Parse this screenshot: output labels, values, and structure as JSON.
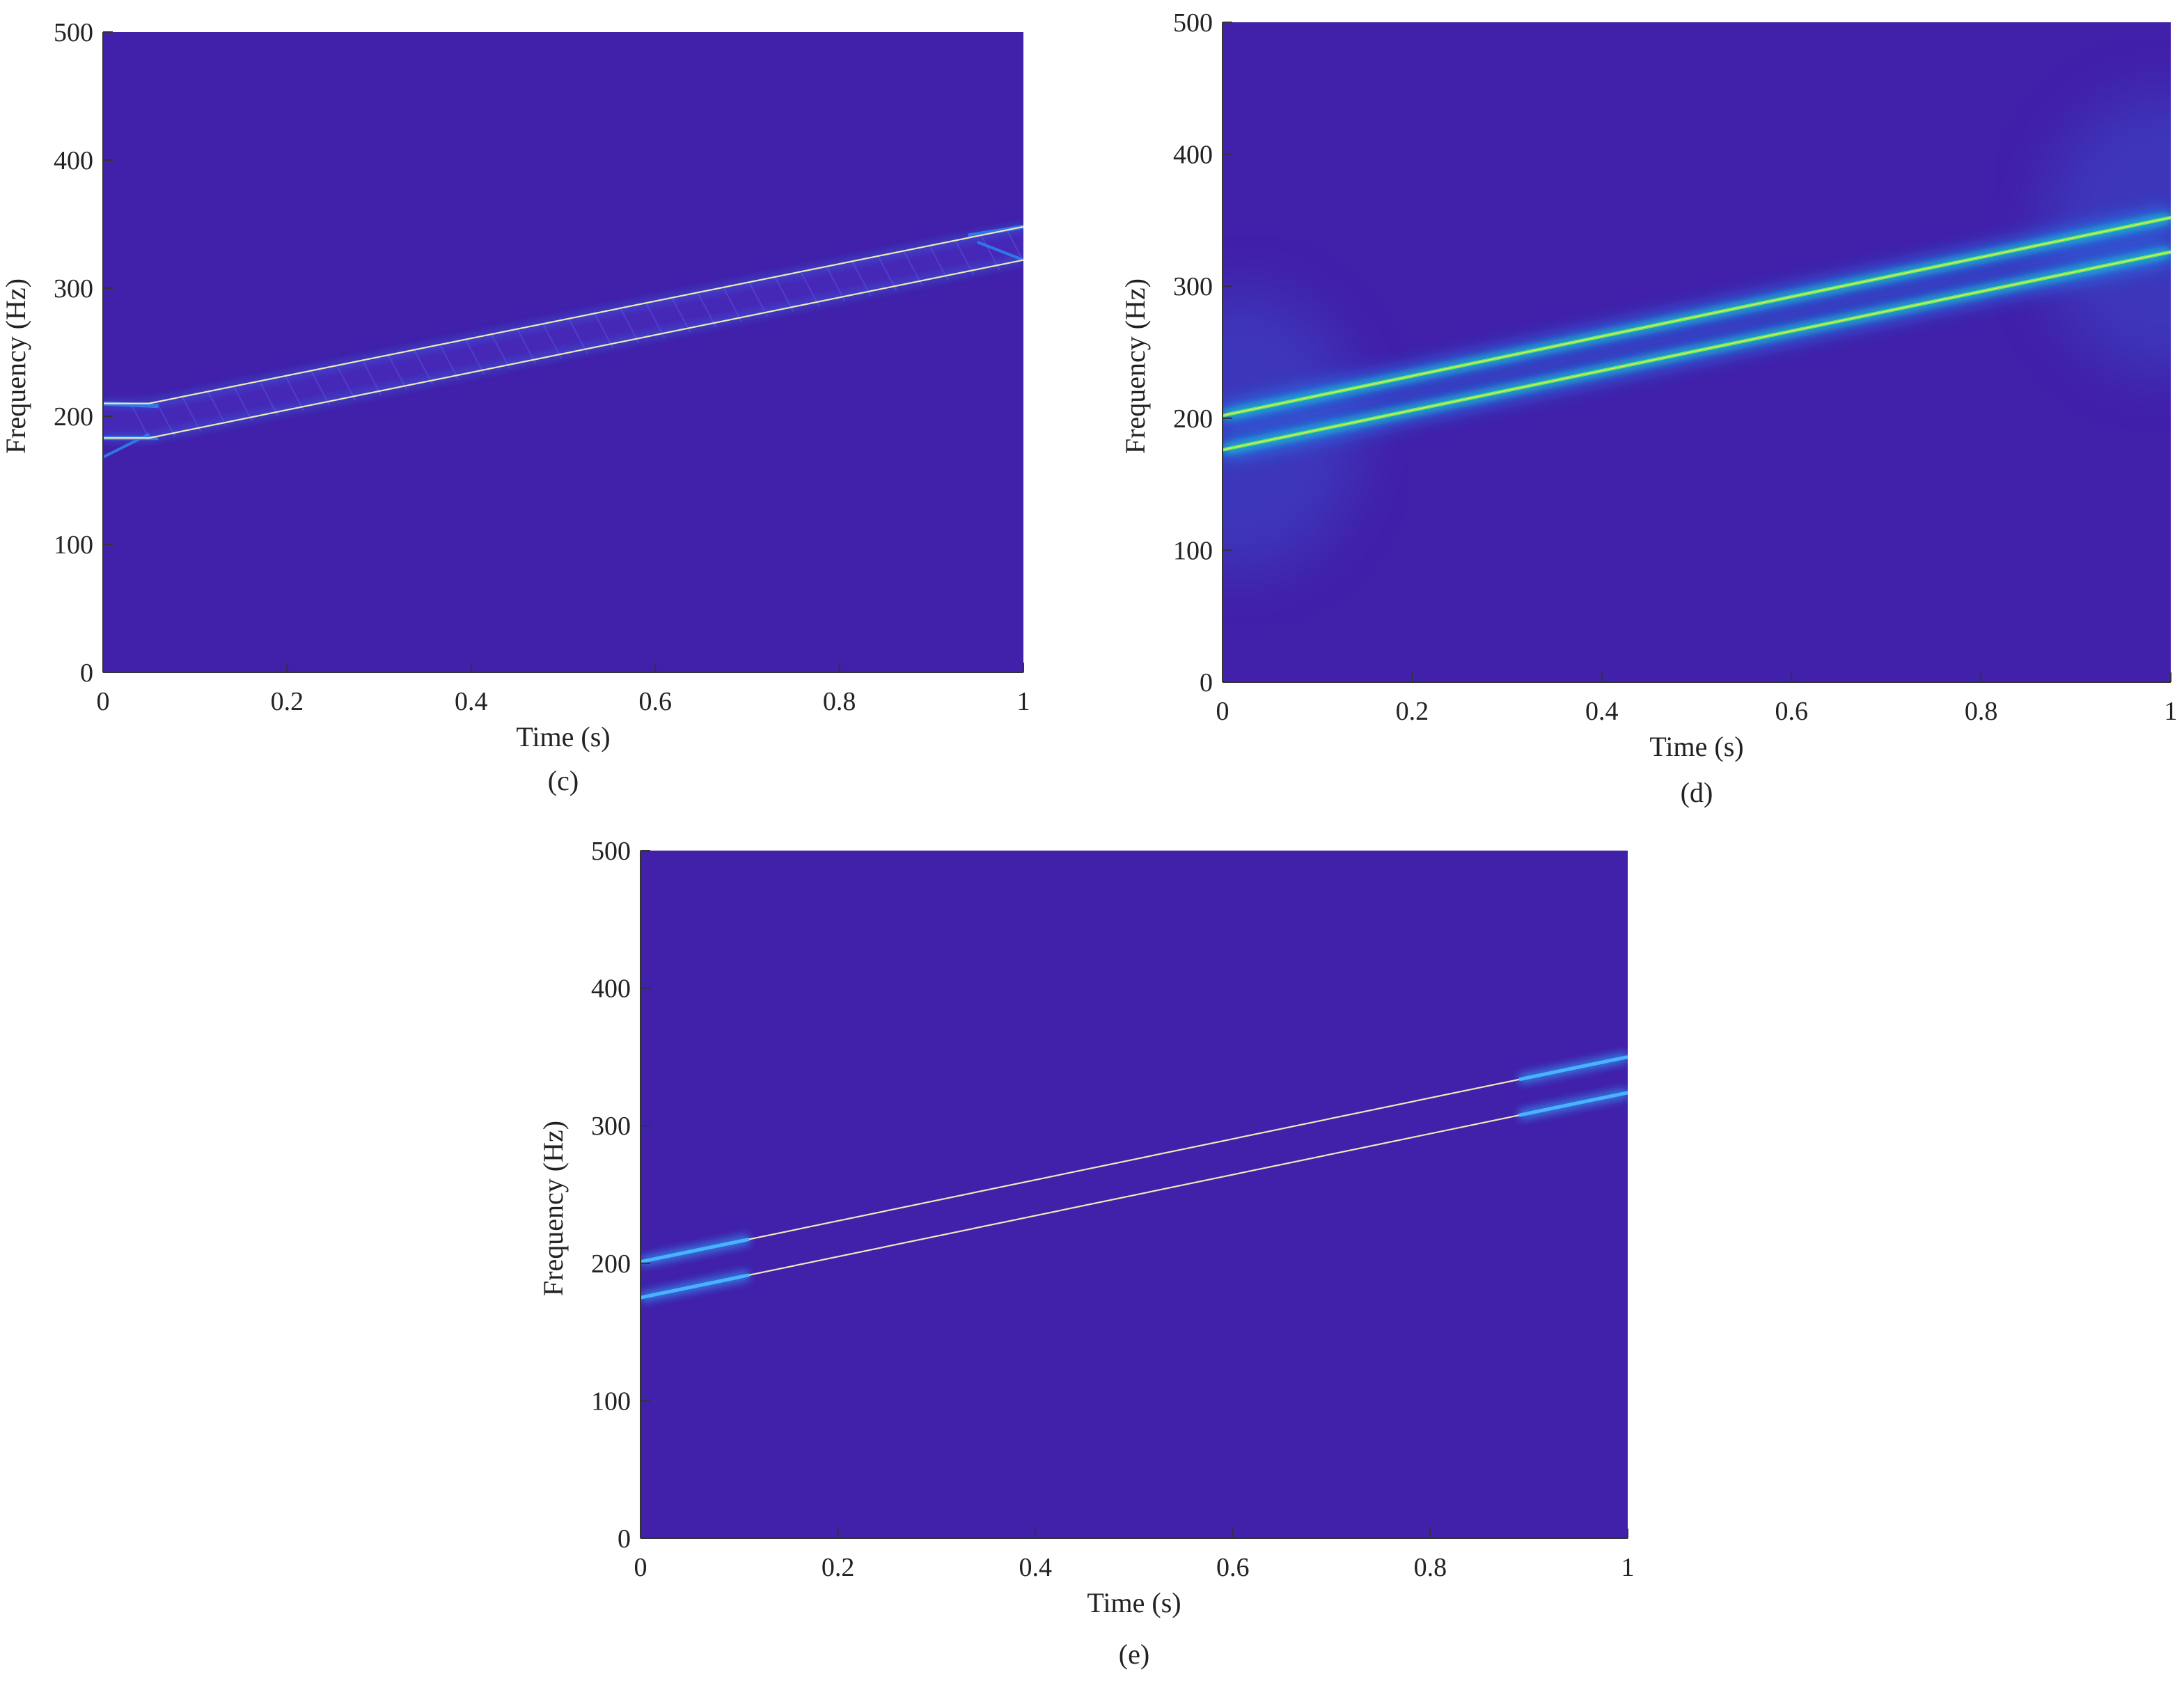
{
  "colors": {
    "background": "#4120AA",
    "glow_c": "#2E7FEE",
    "glow_d_outer": "#1E90FF",
    "glow_d_core": "#62E86A",
    "glow_e": "#2F9BF5",
    "ridge_line": "#F2E7B8",
    "axis": "#333333"
  },
  "chart_data": [
    {
      "type": "heatmap",
      "caption": "(c)",
      "xlabel": "Time (s)",
      "ylabel": "Frequency (Hz)",
      "xlim": [
        0,
        1
      ],
      "ylim": [
        0,
        500
      ],
      "xticks": [
        0,
        0.2,
        0.4,
        0.6,
        0.8,
        1
      ],
      "xtick_labels": [
        "0",
        "0.2",
        "0.4",
        "0.6",
        "0.8",
        "1"
      ],
      "yticks": [
        0,
        100,
        200,
        300,
        400,
        500
      ],
      "ytick_labels": [
        "0",
        "100",
        "200",
        "300",
        "400",
        "500"
      ],
      "grid": false,
      "ridges": [
        {
          "x": [
            0,
            0.05,
            1
          ],
          "y": [
            210,
            210,
            348
          ]
        },
        {
          "x": [
            0,
            0.05,
            1
          ],
          "y": [
            183,
            183,
            322
          ]
        }
      ],
      "artifacts": [
        {
          "x": [
            0,
            0.05
          ],
          "y": [
            168,
            186
          ]
        },
        {
          "x": [
            0.95,
            1
          ],
          "y": [
            336,
            322
          ]
        }
      ]
    },
    {
      "type": "heatmap",
      "caption": "(d)",
      "xlabel": "Time (s)",
      "ylabel": "Frequency (Hz)",
      "xlim": [
        0,
        1
      ],
      "ylim": [
        0,
        500
      ],
      "xticks": [
        0,
        0.2,
        0.4,
        0.6,
        0.8,
        1
      ],
      "xtick_labels": [
        "0",
        "0.2",
        "0.4",
        "0.6",
        "0.8",
        "1"
      ],
      "yticks": [
        0,
        100,
        200,
        300,
        400,
        500
      ],
      "ytick_labels": [
        "0",
        "100",
        "200",
        "300",
        "400",
        "500"
      ],
      "grid": false,
      "ridges": [
        {
          "x": [
            0,
            1
          ],
          "y": [
            202,
            352
          ]
        },
        {
          "x": [
            0,
            1
          ],
          "y": [
            176,
            326
          ]
        }
      ]
    },
    {
      "type": "heatmap",
      "caption": "(e)",
      "xlabel": "Time (s)",
      "ylabel": "Frequency (Hz)",
      "xlim": [
        0,
        1
      ],
      "ylim": [
        0,
        500
      ],
      "xticks": [
        0,
        0.2,
        0.4,
        0.6,
        0.8,
        1
      ],
      "xtick_labels": [
        "0",
        "0.2",
        "0.4",
        "0.6",
        "0.8",
        "1"
      ],
      "yticks": [
        0,
        100,
        200,
        300,
        400,
        500
      ],
      "ytick_labels": [
        "0",
        "100",
        "200",
        "300",
        "400",
        "500"
      ],
      "grid": false,
      "ridges": [
        {
          "x": [
            0,
            1
          ],
          "y": [
            201,
            350
          ]
        },
        {
          "x": [
            0,
            1
          ],
          "y": [
            175,
            324
          ]
        }
      ],
      "blur_edge_fraction": 0.11
    }
  ]
}
